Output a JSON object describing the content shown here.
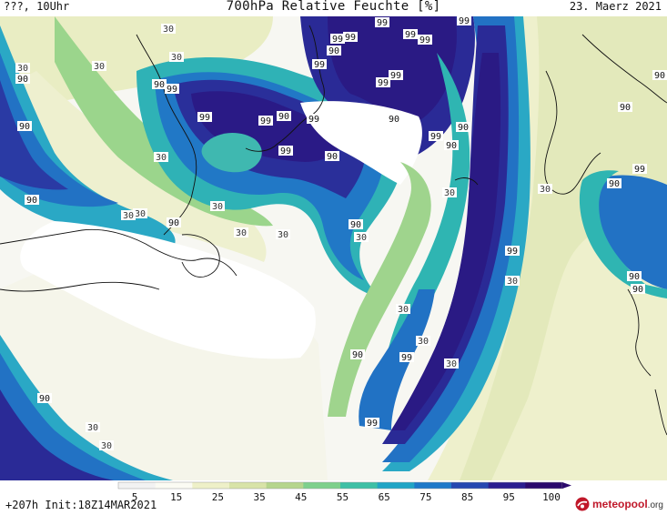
{
  "header": {
    "left": "???, 10Uhr",
    "title": "700hPa Relative Feuchte [%]",
    "right": "23. Maerz 2021"
  },
  "footer": {
    "left": "+207h  Init:18Z14MAR2021",
    "logo_name": "meteopool",
    "logo_tld": ".org"
  },
  "legend": {
    "ticks": [
      "5",
      "15",
      "25",
      "35",
      "45",
      "55",
      "65",
      "75",
      "85",
      "95",
      "100"
    ],
    "colors": [
      "#f2f2f2",
      "#fbfbf3",
      "#eef0c8",
      "#d8e3a8",
      "#b5d58c",
      "#7ed08c",
      "#3fc0a6",
      "#22a5c6",
      "#1f79c9",
      "#2547b0",
      "#2a1e8f",
      "#2b0a6c"
    ]
  },
  "map": {
    "colors": {
      "white": "#ffffff",
      "pale": "#f4f4ec",
      "cream": "#f1f2d6",
      "yellowgreen": "#dde5b4",
      "green": "#a8d58e",
      "teal": "#48c0a4",
      "cyan": "#26a7c7",
      "blue": "#2170c4",
      "indigo": "#2740a8",
      "navy": "#291d8a"
    },
    "contour_labels": [
      "30",
      "90",
      "99",
      "99",
      "99",
      "99",
      "99",
      "90",
      "99",
      "99",
      "99",
      "90",
      "99",
      "99",
      "99",
      "90",
      "99",
      "99",
      "90",
      "99",
      "90",
      "30",
      "30",
      "30",
      "30",
      "90",
      "30",
      "30",
      "90",
      "90",
      "30",
      "30",
      "90",
      "30",
      "30",
      "99",
      "90",
      "90",
      "30",
      "90",
      "90",
      "30",
      "99",
      "99",
      "30",
      "90",
      "90",
      "90",
      "30",
      "30",
      "90",
      "99",
      "30",
      "90",
      "30",
      "30",
      "99"
    ]
  }
}
